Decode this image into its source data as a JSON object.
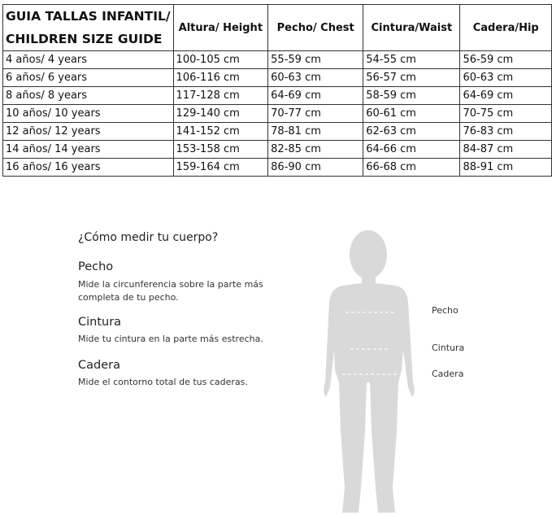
{
  "size_table": {
    "title_line1": "GUIA TALLAS INFANTIL/",
    "title_line2": "CHILDREN SIZE GUIDE",
    "headers": [
      "Altura/ Height",
      "Pecho/ Chest",
      "Cintura/Waist",
      "Cadera/Hip"
    ],
    "rows": [
      [
        "4 años/ 4 years",
        "100-105 cm",
        "55-59 cm",
        "54-55 cm",
        "56-59 cm"
      ],
      [
        "6 años/ 6 years",
        "106-116 cm",
        "60-63 cm",
        "56-57 cm",
        "60-63 cm"
      ],
      [
        "8 años/ 8 years",
        "117-128 cm",
        "64-69 cm",
        "58-59 cm",
        "64-69 cm"
      ],
      [
        "10 años/ 10 years",
        "129-140 cm",
        "70-77 cm",
        "60-61 cm",
        "70-75 cm"
      ],
      [
        "12 años/ 12 years",
        "141-152 cm",
        "78-81 cm",
        "62-63 cm",
        "76-83 cm"
      ],
      [
        "14 años/ 14 years",
        "153-158 cm",
        "82-85 cm",
        "64-66 cm",
        "84-87 cm"
      ],
      [
        "16 años/ 16 years",
        "159-164 cm",
        "86-90 cm",
        "66-68 cm",
        "88-91 cm"
      ]
    ]
  },
  "how_to": {
    "heading": "¿Cómo medir tu cuerpo?",
    "sections": [
      {
        "title": "Pecho",
        "desc_line1": "Mide la circunferencia sobre la parte más",
        "desc_line2": "completa de tu pecho."
      },
      {
        "title": "Cintura",
        "desc_line1": "Mide tu cintura en la parte más estrecha."
      },
      {
        "title": "Cadera",
        "desc_line1": "Mide el contorno total de tus caderas."
      }
    ]
  },
  "figure": {
    "labels": {
      "chest": "Pecho",
      "waist": "Cintura",
      "hip": "Cadera"
    },
    "silhouette_color": "#d9d9d9"
  }
}
